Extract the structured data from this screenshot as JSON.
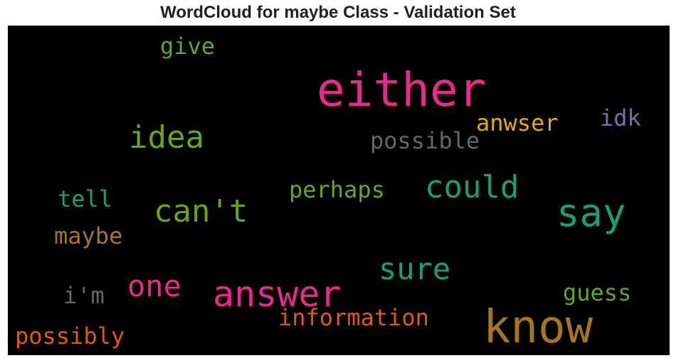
{
  "title": "WordCloud for maybe Class - Validation Set",
  "chart_data": {
    "type": "wordcloud",
    "title": "WordCloud for maybe Class - Validation Set",
    "background": "#000000",
    "words": [
      {
        "text": "either",
        "color": "#e7298a"
      },
      {
        "text": "know",
        "color": "#a6761d"
      },
      {
        "text": "answer",
        "color": "#e7298a"
      },
      {
        "text": "say",
        "color": "#1b9e77"
      },
      {
        "text": "could",
        "color": "#1b9e77"
      },
      {
        "text": "can't",
        "color": "#66a61e"
      },
      {
        "text": "idea",
        "color": "#66a61e"
      },
      {
        "text": "sure",
        "color": "#1b9e77"
      },
      {
        "text": "one",
        "color": "#e7298a"
      },
      {
        "text": "information",
        "color": "#d95f02"
      },
      {
        "text": "possibly",
        "color": "#d95f02"
      },
      {
        "text": "possible",
        "color": "#666666"
      },
      {
        "text": "anwser",
        "color": "#e6ab02"
      },
      {
        "text": "perhaps",
        "color": "#66a61e"
      },
      {
        "text": "give",
        "color": "#66a61e"
      },
      {
        "text": "guess",
        "color": "#66a61e"
      },
      {
        "text": "idk",
        "color": "#7570b3"
      },
      {
        "text": "tell",
        "color": "#1b9e77"
      },
      {
        "text": "maybe",
        "color": "#a6761d"
      },
      {
        "text": "i'm",
        "color": "#666666"
      }
    ]
  }
}
